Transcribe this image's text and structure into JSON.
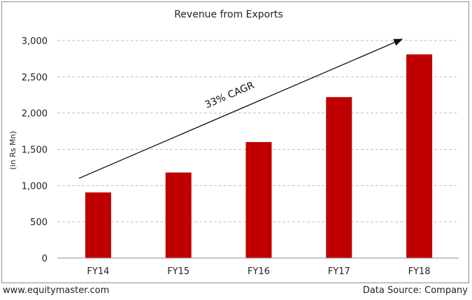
{
  "chart_data": {
    "type": "bar",
    "title": "Revenue from Exports",
    "ylabel": "(in Rs Mn)",
    "xlabel": "",
    "categories": [
      "FY14",
      "FY15",
      "FY16",
      "FY17",
      "FY18"
    ],
    "values": [
      905,
      1180,
      1600,
      2220,
      2810
    ],
    "ylim": [
      0,
      3000
    ],
    "yticks": [
      0,
      500,
      1000,
      1500,
      2000,
      2500,
      3000
    ],
    "ytick_labels": [
      "0",
      "500",
      "1,000",
      "1,500",
      "2,000",
      "2,500",
      "3,000"
    ],
    "grid": true,
    "bar_color": "#c00000",
    "annotation": "33% CAGR"
  },
  "footer": {
    "website": "www.equitymaster.com",
    "source": "Data Source: Company"
  }
}
